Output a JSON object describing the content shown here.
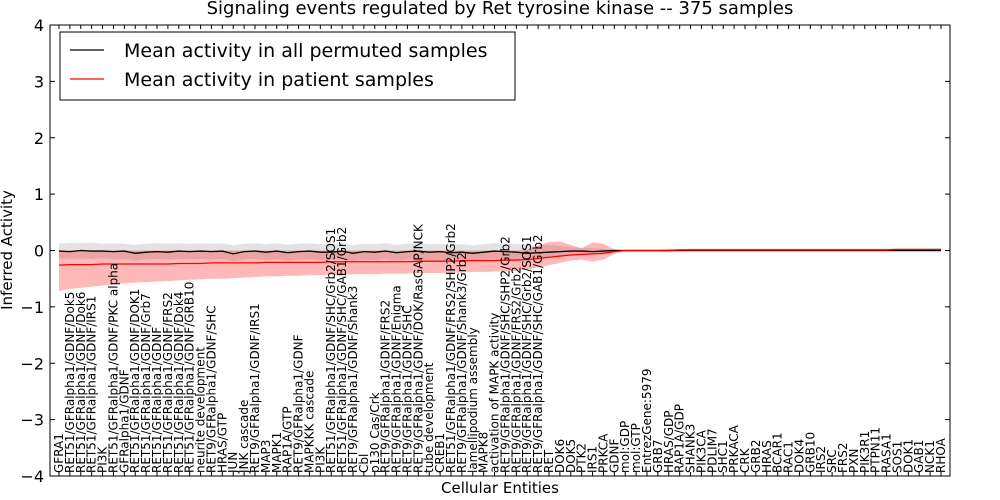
{
  "chart_data": {
    "type": "line",
    "title": "Signaling events regulated by Ret tyrosine kinase -- 375 samples",
    "xlabel": "Cellular Entities",
    "ylabel": "Inferred Activity",
    "ylim": [
      -4,
      4
    ],
    "yticks": [
      -4,
      -3,
      -2,
      -1,
      0,
      1,
      2,
      3,
      4
    ],
    "ytick_labels": [
      "−4",
      "−3",
      "−2",
      "−1",
      "0",
      "1",
      "2",
      "3",
      "4"
    ],
    "grid": false,
    "legend_position": "top-left",
    "categories": [
      "GFRA1",
      "RET51/GFRalpha1/GDNF/Dok5",
      "RET51/GFRalpha1/GDNF/Dok6",
      "RET51/GFRalpha1/GDNF/IRS1",
      "PI3K",
      "RET51/GFRalpha1/GDNF/PKC alpha",
      "GFRalpha1/GDNF",
      "RET51/GFRalpha1/GDNF/DOK1",
      "RET51/GFRalpha1/GDNF/Grb7",
      "RET51/GFRalpha1/GDNF",
      "RET51/GFRalpha1/GDNF/FRS2",
      "RET51/GFRalpha1/GDNF/Dok4",
      "RET51/GFRalpha1/GDNF/GRB10",
      "neurite development",
      "RET9/GFRalpha1/GDNF/SHC",
      "HRAS/GTP",
      "JUN",
      "JNK cascade",
      "RET9/GFRalpha1/GDNF/IRS1",
      "MAP3",
      "MAPK1",
      "RAP1A/GTP",
      "RET9/GFRalpha1/GDNF",
      "MAPKKK cascade",
      "PI3K",
      "RET51/GFRalpha1/GDNF/SHC/Grb2/SOS1",
      "RET51/GFRalpha1/GDNF/SHC/GAB1/Grb2",
      "RET9/GFRalpha1/GDNF/Shank3",
      "Cbl",
      "p130 Cas/Crk",
      "RET9/GFRalpha1/GDNF/FRS2",
      "RET9/GFRalpha1/GDNF/Enigma",
      "RET9/GFRalpha1/GDNF/SHC",
      "RET9/GFRalpha1/GDNF/DOK/RasGAP/NCK",
      "tube development",
      "CREB1",
      "RET51/GFRalpha1/GDNF/FRS2/SHP2/Grb2",
      "RET9/GFRalpha1/GDNF/Shank3/Grb2",
      "lamellipodium assembly",
      "MAPK8",
      "activation of MAPK activity",
      "RET9/GFRalpha1/GDNF/SHC/SHP2/Grb2",
      "RET9/GFRalpha1/GDNF/FRS2/Grb2",
      "RET9/GFRalpha1/GDNF/SHC/Grb2/SOS1",
      "RET9/GFRalpha1/GDNF/SHC/GAB1/Grb2",
      "RET",
      "DOK6",
      "DOK5",
      "PTK2",
      "IRS1",
      "PRKCA",
      "GDNF",
      "mol:GDP",
      "mol:GTP",
      "EntrezGene:5979",
      "GRB7",
      "HRAS/GDP",
      "RAP1A/GDP",
      "SHANK3",
      "PIK3CA",
      "PDLIM7",
      "SHC1",
      "PRKACA",
      "CRK",
      "GRB2",
      "HRAS",
      "BCAR1",
      "RAC1",
      "DOK4",
      "GRB10",
      "IRS2",
      "SRC",
      "FRS2",
      "PXN",
      "PIK3R1",
      "PTPN11",
      "RASA1",
      "SOS1",
      "DOK1",
      "GAB1",
      "NCK1",
      "RHOA"
    ],
    "series": [
      {
        "name": "Mean activity in all permuted samples",
        "color": "#000000",
        "values": [
          -0.01,
          -0.02,
          0.0,
          -0.01,
          -0.01,
          -0.02,
          -0.01,
          -0.05,
          -0.03,
          -0.02,
          -0.03,
          -0.01,
          -0.02,
          -0.01,
          -0.02,
          -0.01,
          -0.06,
          -0.02,
          -0.01,
          -0.03,
          -0.01,
          -0.04,
          -0.02,
          -0.01,
          -0.03,
          -0.03,
          -0.01,
          -0.05,
          -0.02,
          -0.03,
          -0.01,
          -0.04,
          -0.02,
          -0.01,
          -0.03,
          -0.02,
          -0.04,
          -0.03,
          -0.05,
          -0.03,
          -0.01,
          -0.02,
          -0.03,
          -0.05,
          -0.04,
          -0.03,
          -0.02,
          -0.01,
          -0.01,
          -0.02,
          -0.01,
          0.0,
          0.0,
          0.0,
          0.0,
          0.0,
          0.0,
          0.0,
          0.0,
          0.0,
          0.0,
          0.0,
          0.0,
          0.0,
          0.0,
          0.0,
          0.0,
          0.0,
          0.0,
          0.0,
          0.0,
          0.0,
          0.0,
          0.0,
          0.0,
          0.0,
          0.0,
          0.0,
          0.0,
          0.0,
          0.0,
          0.0
        ]
      },
      {
        "name": "Mean activity in patient samples",
        "color": "#ff0000",
        "values": [
          -0.26,
          -0.25,
          -0.25,
          -0.25,
          -0.24,
          -0.24,
          -0.24,
          -0.24,
          -0.24,
          -0.24,
          -0.24,
          -0.23,
          -0.23,
          -0.23,
          -0.22,
          -0.22,
          -0.22,
          -0.22,
          -0.22,
          -0.21,
          -0.21,
          -0.21,
          -0.21,
          -0.21,
          -0.21,
          -0.2,
          -0.2,
          -0.2,
          -0.2,
          -0.2,
          -0.2,
          -0.2,
          -0.2,
          -0.19,
          -0.19,
          -0.19,
          -0.19,
          -0.18,
          -0.18,
          -0.18,
          -0.18,
          -0.17,
          -0.17,
          -0.16,
          -0.14,
          -0.12,
          -0.1,
          -0.08,
          -0.07,
          -0.06,
          -0.05,
          -0.02,
          0.0,
          0.0,
          0.0,
          0.0,
          0.0,
          0.01,
          0.01,
          0.01,
          0.01,
          0.01,
          0.01,
          0.01,
          0.01,
          0.01,
          0.01,
          0.01,
          0.01,
          0.01,
          0.01,
          0.01,
          0.01,
          0.01,
          0.01,
          0.01,
          0.01,
          0.02,
          0.02,
          0.02,
          0.02,
          0.02
        ]
      }
    ],
    "bands": [
      {
        "name": "permuted samples spread",
        "color": "#999999",
        "upper": [
          0.12,
          0.14,
          0.13,
          0.14,
          0.12,
          0.13,
          0.12,
          0.1,
          0.12,
          0.13,
          0.12,
          0.13,
          0.12,
          0.13,
          0.12,
          0.13,
          0.09,
          0.12,
          0.13,
          0.11,
          0.13,
          0.1,
          0.12,
          0.13,
          0.11,
          0.11,
          0.13,
          0.09,
          0.12,
          0.11,
          0.13,
          0.1,
          0.12,
          0.13,
          0.11,
          0.12,
          0.1,
          0.11,
          0.09,
          0.11,
          0.13,
          0.12,
          0.11,
          0.1,
          0.1,
          0.1,
          0.08,
          0.06,
          0.05,
          0.04,
          0.03,
          0.02,
          0.02,
          0.02,
          0.02,
          0.02,
          0.03,
          0.03,
          0.03,
          0.03,
          0.03,
          0.03,
          0.03,
          0.03,
          0.03,
          0.03,
          0.03,
          0.03,
          0.03,
          0.03,
          0.03,
          0.03,
          0.03,
          0.03,
          0.03,
          0.03,
          0.03,
          0.03,
          0.03,
          0.03,
          0.03,
          0.03
        ],
        "lower": [
          -0.14,
          -0.15,
          -0.14,
          -0.15,
          -0.14,
          -0.16,
          -0.15,
          -0.18,
          -0.16,
          -0.15,
          -0.16,
          -0.15,
          -0.16,
          -0.15,
          -0.16,
          -0.15,
          -0.19,
          -0.16,
          -0.15,
          -0.17,
          -0.15,
          -0.18,
          -0.16,
          -0.15,
          -0.17,
          -0.17,
          -0.15,
          -0.19,
          -0.16,
          -0.17,
          -0.15,
          -0.18,
          -0.16,
          -0.15,
          -0.17,
          -0.16,
          -0.18,
          -0.17,
          -0.19,
          -0.17,
          -0.15,
          -0.16,
          -0.17,
          -0.18,
          -0.16,
          -0.13,
          -0.1,
          -0.07,
          -0.05,
          -0.04,
          -0.03,
          -0.02,
          -0.02,
          -0.02,
          -0.02,
          -0.02,
          -0.03,
          -0.03,
          -0.03,
          -0.03,
          -0.03,
          -0.03,
          -0.03,
          -0.03,
          -0.03,
          -0.03,
          -0.03,
          -0.03,
          -0.03,
          -0.03,
          -0.03,
          -0.03,
          -0.03,
          -0.03,
          -0.03,
          -0.03,
          -0.03,
          -0.03,
          -0.03,
          -0.03,
          -0.03,
          -0.03
        ]
      },
      {
        "name": "patient samples spread",
        "color": "#ff0000",
        "upper": [
          -0.02,
          0.0,
          0.0,
          0.0,
          0.0,
          0.0,
          0.0,
          0.0,
          0.0,
          0.0,
          0.0,
          0.0,
          0.0,
          0.0,
          0.0,
          0.0,
          0.0,
          0.0,
          0.0,
          0.0,
          0.0,
          0.0,
          0.0,
          0.0,
          0.0,
          0.0,
          0.0,
          0.0,
          0.0,
          0.0,
          0.0,
          0.0,
          0.0,
          0.0,
          0.0,
          0.0,
          0.0,
          0.0,
          0.0,
          0.0,
          0.0,
          0.0,
          0.0,
          0.02,
          0.08,
          0.15,
          0.16,
          0.1,
          0.04,
          0.14,
          0.12,
          0.02,
          0.0,
          0.0,
          0.0,
          0.0,
          0.02,
          0.02,
          0.03,
          0.03,
          0.03,
          0.03,
          0.03,
          0.03,
          0.03,
          0.03,
          0.03,
          0.03,
          0.03,
          0.03,
          0.03,
          0.03,
          0.03,
          0.03,
          0.03,
          0.03,
          0.03,
          0.03,
          0.03,
          0.03,
          0.03,
          0.03
        ],
        "lower": [
          -0.72,
          -0.68,
          -0.66,
          -0.64,
          -0.62,
          -0.6,
          -0.58,
          -0.57,
          -0.56,
          -0.55,
          -0.54,
          -0.53,
          -0.52,
          -0.51,
          -0.5,
          -0.5,
          -0.49,
          -0.48,
          -0.47,
          -0.46,
          -0.46,
          -0.45,
          -0.45,
          -0.44,
          -0.44,
          -0.43,
          -0.43,
          -0.42,
          -0.42,
          -0.42,
          -0.41,
          -0.41,
          -0.41,
          -0.4,
          -0.4,
          -0.4,
          -0.39,
          -0.39,
          -0.38,
          -0.38,
          -0.37,
          -0.37,
          -0.36,
          -0.34,
          -0.3,
          -0.26,
          -0.22,
          -0.18,
          -0.16,
          -0.2,
          -0.16,
          -0.06,
          -0.02,
          -0.02,
          -0.02,
          -0.02,
          -0.02,
          -0.01,
          -0.01,
          -0.01,
          -0.01,
          -0.01,
          -0.01,
          -0.01,
          -0.01,
          -0.01,
          -0.01,
          -0.01,
          -0.01,
          -0.01,
          -0.01,
          -0.01,
          -0.01,
          -0.01,
          -0.01,
          -0.01,
          -0.01,
          -0.01,
          -0.01,
          -0.01,
          -0.01,
          -0.01
        ]
      }
    ]
  }
}
